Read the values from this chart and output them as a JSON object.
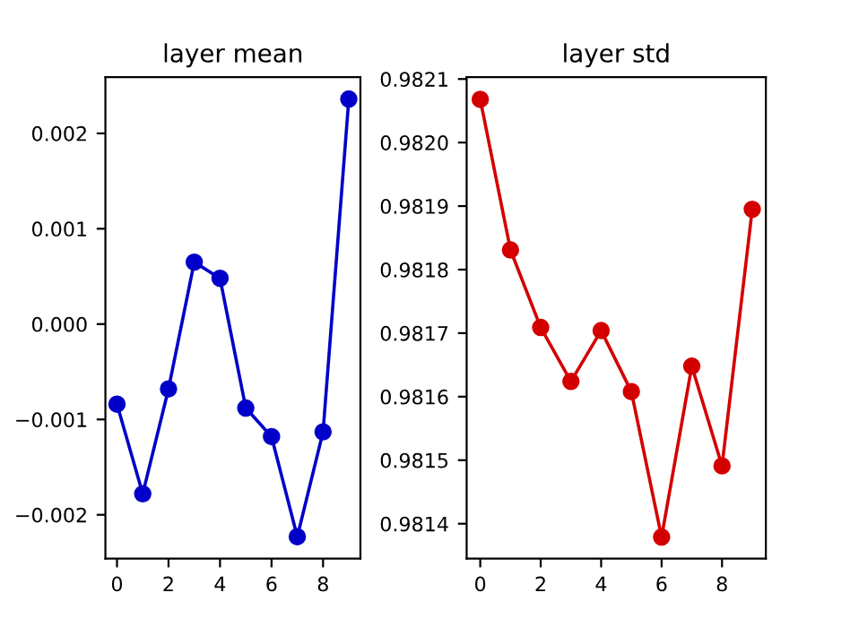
{
  "chart_data": [
    {
      "type": "line",
      "title": "layer mean",
      "x": [
        0,
        1,
        2,
        3,
        4,
        5,
        6,
        7,
        8,
        9
      ],
      "series": [
        {
          "color": "#0000c8",
          "values": [
            -0.00084,
            -0.00178,
            -0.00068,
            0.00065,
            0.00048,
            -0.00088,
            -0.00118,
            -0.00223,
            -0.00113,
            0.00236
          ]
        }
      ],
      "marker": "circle",
      "line_style": "solid",
      "grid": false,
      "legend": false,
      "xlim": [
        -0.45,
        9.45
      ],
      "xticks": [
        0,
        2,
        4,
        6,
        8
      ],
      "ylim": [
        -0.00246,
        0.00259
      ],
      "yticks": [
        {
          "value": -0.002,
          "label": "−0.002"
        },
        {
          "value": -0.001,
          "label": "−0.001"
        },
        {
          "value": 0.0,
          "label": "0.000"
        },
        {
          "value": 0.001,
          "label": "0.001"
        },
        {
          "value": 0.002,
          "label": "0.002"
        }
      ]
    },
    {
      "type": "line",
      "title": "layer std",
      "x": [
        0,
        1,
        2,
        3,
        4,
        5,
        6,
        7,
        8,
        9
      ],
      "series": [
        {
          "color": "#d40000",
          "values": [
            0.982068,
            0.981831,
            0.981709,
            0.981624,
            0.981704,
            0.981608,
            0.981379,
            0.981648,
            0.981491,
            0.981895
          ]
        }
      ],
      "marker": "circle",
      "line_style": "solid",
      "grid": false,
      "legend": false,
      "xlim": [
        -0.45,
        9.45
      ],
      "xticks": [
        0,
        2,
        4,
        6,
        8
      ],
      "ylim": [
        0.981345,
        0.982103
      ],
      "yticks": [
        0.9814,
        0.9815,
        0.9816,
        0.9817,
        0.9818,
        0.9819,
        {
          "value": 0.982,
          "label": "0.9820"
        },
        0.9821
      ]
    }
  ]
}
